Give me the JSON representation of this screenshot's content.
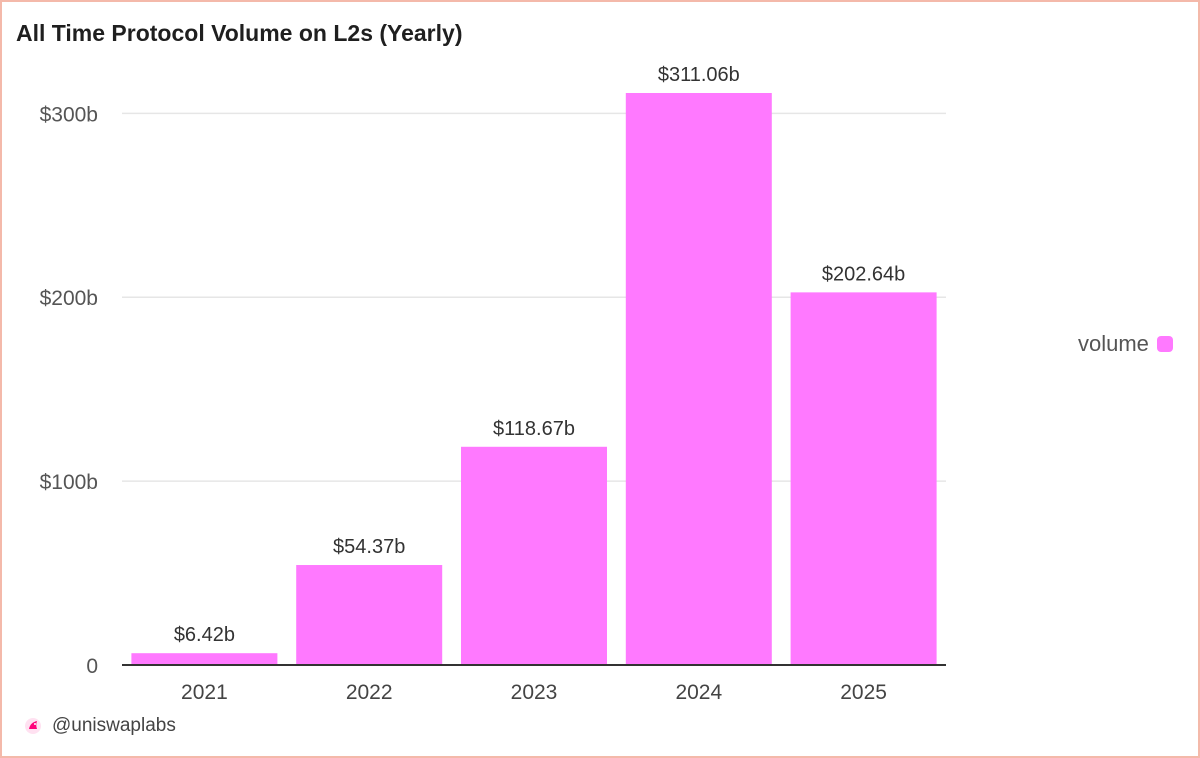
{
  "title": "All Time Protocol Volume on L2s (Yearly)",
  "footer": {
    "handle": "@uniswaplabs",
    "logo_icon": "unicorn-logo-icon"
  },
  "colors": {
    "bar": "#ff79ff",
    "grid": "#e6e6e6",
    "axis": "#333333",
    "label": "#444444",
    "frame": "#f4b9aa"
  },
  "chart_data": {
    "type": "bar",
    "title": "All Time Protocol Volume on L2s (Yearly)",
    "xlabel": "",
    "ylabel": "",
    "categories": [
      "2021",
      "2022",
      "2023",
      "2024",
      "2025"
    ],
    "series": [
      {
        "name": "volume",
        "values": [
          6.42,
          54.37,
          118.67,
          311.06,
          202.64
        ],
        "labels": [
          "$6.42b",
          "$54.37b",
          "$118.67b",
          "$311.06b",
          "$202.64b"
        ]
      }
    ],
    "yticks": [
      0,
      100,
      200,
      300
    ],
    "ytick_labels": [
      "0",
      "$100b",
      "$200b",
      "$300b"
    ],
    "ylim": [
      0,
      311.06
    ],
    "grid": true,
    "legend": {
      "position": "right",
      "label": "volume"
    }
  }
}
